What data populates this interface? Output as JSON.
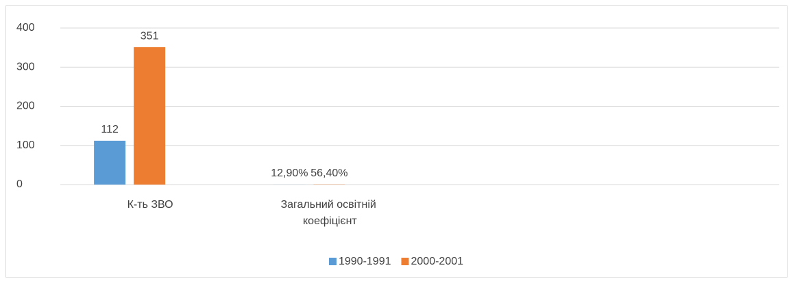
{
  "chart_data": {
    "type": "bar",
    "categories": [
      "К-ть ЗВО",
      "Загальний освітній коефіцієнт",
      null,
      null
    ],
    "series": [
      {
        "name": "1990-1991",
        "color": "#5b9bd5",
        "values": [
          112,
          0.129,
          null,
          null
        ],
        "value_labels": [
          "112",
          "12,90%",
          null,
          null
        ]
      },
      {
        "name": "2000-2001",
        "color": "#ed7d31",
        "values": [
          351,
          0.564,
          null,
          null
        ],
        "value_labels": [
          "351",
          "56,40%",
          null,
          null
        ]
      }
    ],
    "ylim": [
      0,
      400
    ],
    "yticks": [
      0,
      100,
      200,
      300,
      400
    ],
    "grid": true,
    "legend": "bottom"
  }
}
